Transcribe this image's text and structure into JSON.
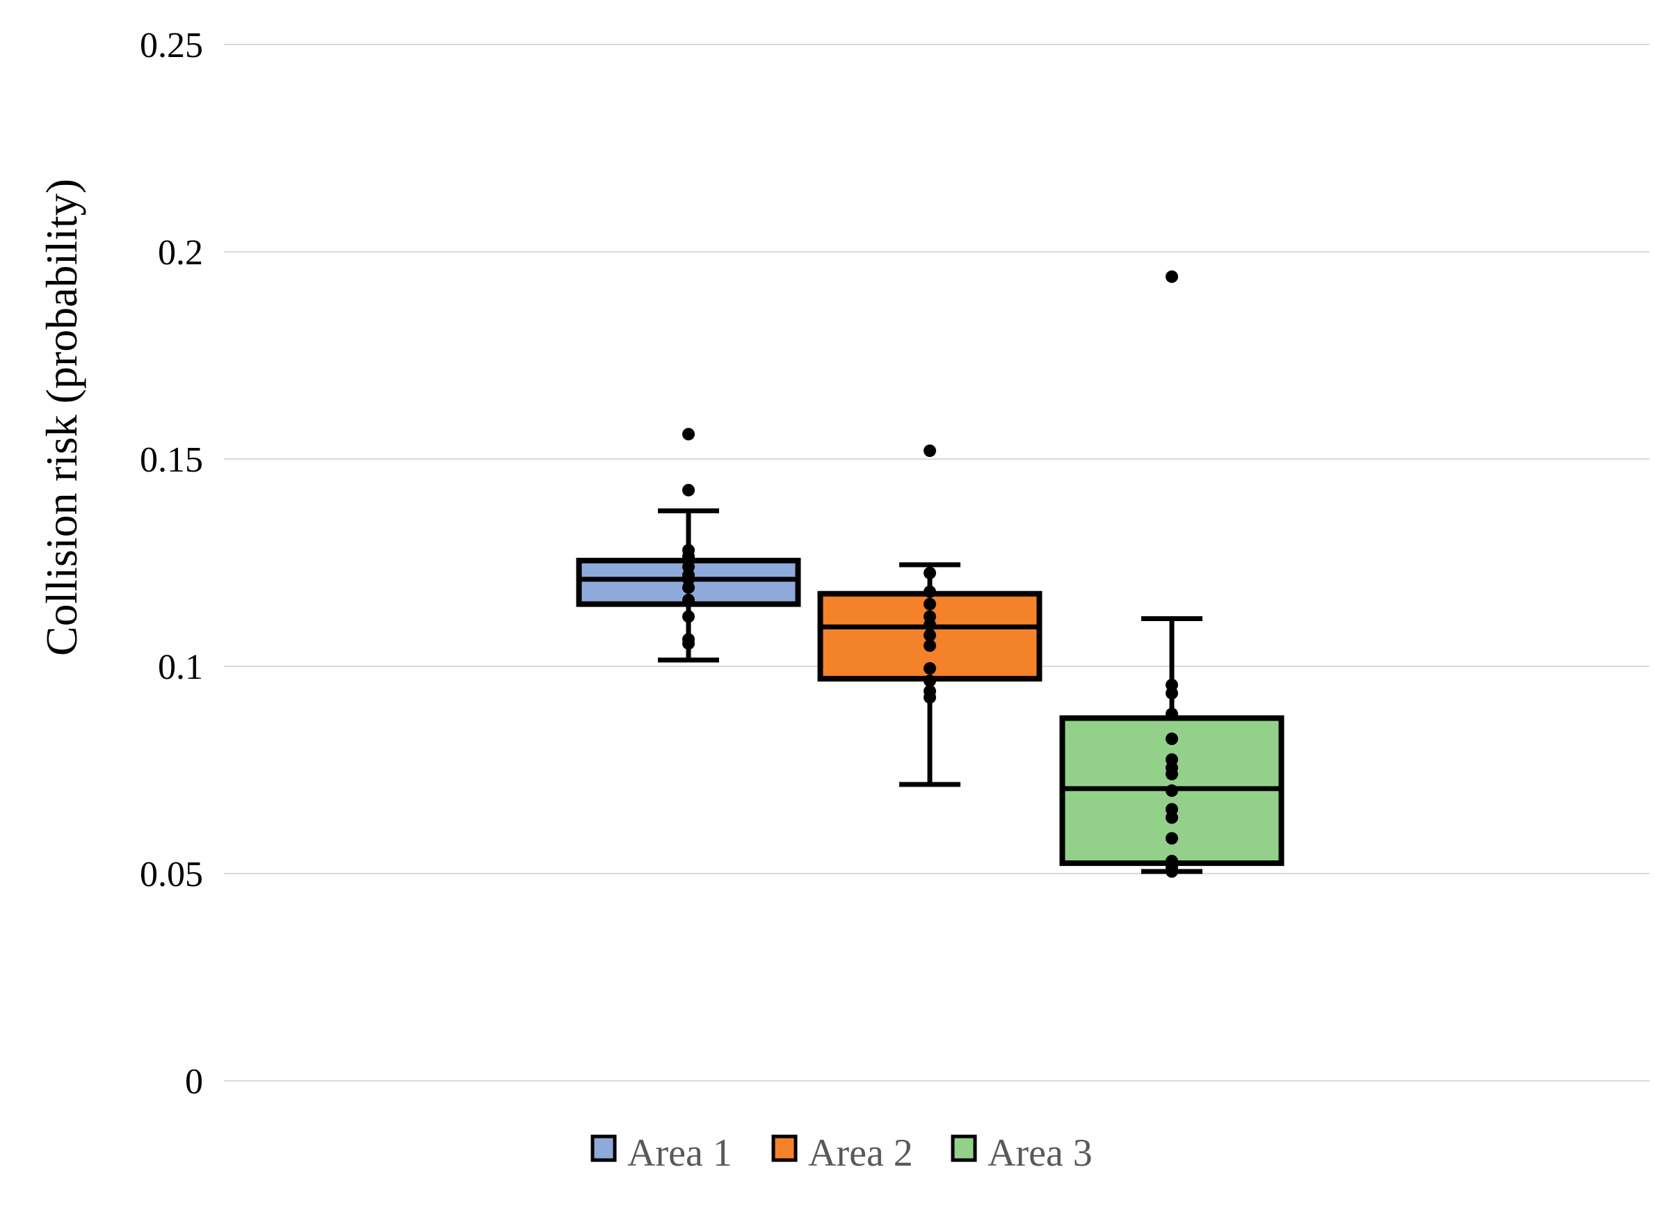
{
  "chart_data": {
    "type": "box",
    "title": "",
    "xlabel": "",
    "ylabel": "Collision risk (probability)",
    "ylim": [
      0,
      0.25
    ],
    "yticks": [
      "0",
      "0.05",
      "0.1",
      "0.15",
      "0.2",
      "0.25"
    ],
    "grid": true,
    "legend_position": "bottom",
    "series": [
      {
        "name": "Area 1",
        "color": "#8eaadb",
        "whisker_low": 0.1015,
        "q1": 0.115,
        "median": 0.121,
        "q3": 0.1255,
        "whisker_high": 0.1375,
        "points": [
          0.1055,
          0.1065,
          0.112,
          0.116,
          0.119,
          0.121,
          0.122,
          0.124,
          0.1265,
          0.128,
          0.1425,
          0.156
        ]
      },
      {
        "name": "Area 2",
        "color": "#f4822a",
        "whisker_low": 0.0715,
        "q1": 0.097,
        "median": 0.1095,
        "q3": 0.1175,
        "whisker_high": 0.1245,
        "points": [
          0.0925,
          0.094,
          0.0965,
          0.0995,
          0.105,
          0.1075,
          0.11,
          0.112,
          0.115,
          0.118,
          0.1225,
          0.152
        ]
      },
      {
        "name": "Area 3",
        "color": "#93d18a",
        "whisker_low": 0.0505,
        "q1": 0.0525,
        "median": 0.0705,
        "q3": 0.0875,
        "whisker_high": 0.1115,
        "points": [
          0.0505,
          0.0515,
          0.053,
          0.0585,
          0.0635,
          0.0655,
          0.07,
          0.074,
          0.0755,
          0.0775,
          0.0825,
          0.0885,
          0.0935,
          0.0955,
          0.194
        ]
      }
    ]
  }
}
